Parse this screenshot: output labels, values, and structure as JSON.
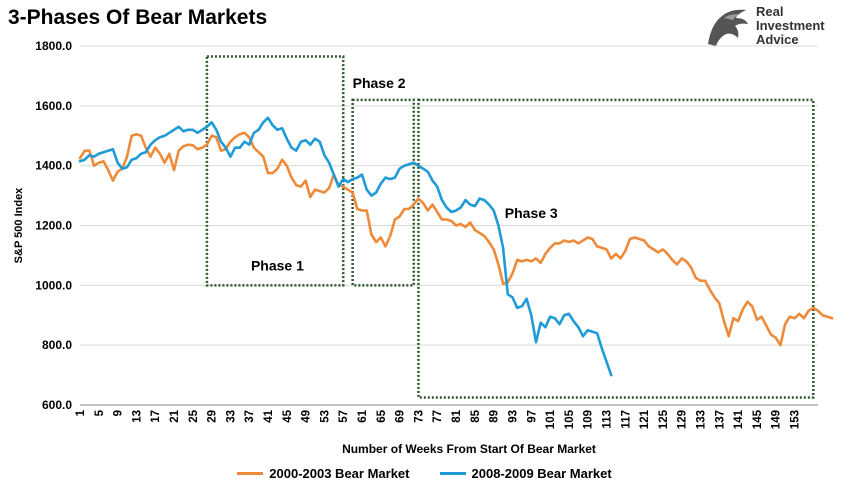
{
  "title": "3-Phases Of Bear Markets",
  "logo": {
    "line1": "Real",
    "line2": "Investment",
    "line3": "Advice",
    "icon": "eagle-head-icon"
  },
  "chart_data": {
    "type": "line",
    "xlabel": "Number of Weeks From Start Of Bear Market",
    "ylabel": "S&P 500 Index",
    "ylim": [
      600,
      1800
    ],
    "xlim": [
      1,
      158
    ],
    "yticks": [
      600,
      800,
      1000,
      1200,
      1400,
      1600,
      1800
    ],
    "ytick_labels": [
      "600.0",
      "800.0",
      "1000.0",
      "1200.0",
      "1400.0",
      "1600.0",
      "1800.0"
    ],
    "xtick_start": 1,
    "xtick_step": 4,
    "xtick_end": 153,
    "grid": "horizontal",
    "legend": "bottom",
    "series": [
      {
        "name": "2000-2003 Bear Market",
        "color": "#ED8B3A",
        "points": [
          [
            1,
            1425
          ],
          [
            2,
            1450
          ],
          [
            3,
            1450
          ],
          [
            4,
            1400
          ],
          [
            5,
            1410
          ],
          [
            6,
            1415
          ],
          [
            7,
            1385
          ],
          [
            8,
            1350
          ],
          [
            9,
            1380
          ],
          [
            10,
            1390
          ],
          [
            11,
            1430
          ],
          [
            12,
            1500
          ],
          [
            13,
            1505
          ],
          [
            14,
            1500
          ],
          [
            15,
            1460
          ],
          [
            16,
            1430
          ],
          [
            17,
            1460
          ],
          [
            18,
            1440
          ],
          [
            19,
            1410
          ],
          [
            20,
            1440
          ],
          [
            21,
            1385
          ],
          [
            22,
            1450
          ],
          [
            23,
            1465
          ],
          [
            24,
            1470
          ],
          [
            25,
            1468
          ],
          [
            26,
            1455
          ],
          [
            27,
            1460
          ],
          [
            28,
            1470
          ],
          [
            29,
            1500
          ],
          [
            30,
            1495
          ],
          [
            31,
            1450
          ],
          [
            32,
            1455
          ],
          [
            33,
            1480
          ],
          [
            34,
            1495
          ],
          [
            35,
            1505
          ],
          [
            36,
            1510
          ],
          [
            37,
            1495
          ],
          [
            38,
            1460
          ],
          [
            39,
            1445
          ],
          [
            40,
            1430
          ],
          [
            41,
            1375
          ],
          [
            42,
            1375
          ],
          [
            43,
            1390
          ],
          [
            44,
            1420
          ],
          [
            45,
            1400
          ],
          [
            46,
            1360
          ],
          [
            47,
            1335
          ],
          [
            48,
            1330
          ],
          [
            49,
            1350
          ],
          [
            50,
            1295
          ],
          [
            51,
            1320
          ],
          [
            52,
            1315
          ],
          [
            53,
            1310
          ],
          [
            54,
            1325
          ],
          [
            55,
            1370
          ],
          [
            56,
            1335
          ],
          [
            57,
            1330
          ],
          [
            58,
            1320
          ],
          [
            59,
            1310
          ],
          [
            60,
            1255
          ],
          [
            61,
            1250
          ],
          [
            62,
            1250
          ],
          [
            63,
            1170
          ],
          [
            64,
            1145
          ],
          [
            65,
            1160
          ],
          [
            66,
            1130
          ],
          [
            67,
            1165
          ],
          [
            68,
            1220
          ],
          [
            69,
            1230
          ],
          [
            70,
            1255
          ],
          [
            71,
            1255
          ],
          [
            72,
            1270
          ],
          [
            73,
            1290
          ],
          [
            74,
            1275
          ],
          [
            75,
            1250
          ],
          [
            76,
            1270
          ],
          [
            77,
            1245
          ],
          [
            78,
            1220
          ],
          [
            79,
            1220
          ],
          [
            80,
            1215
          ],
          [
            81,
            1200
          ],
          [
            82,
            1205
          ],
          [
            83,
            1195
          ],
          [
            84,
            1210
          ],
          [
            85,
            1185
          ],
          [
            86,
            1175
          ],
          [
            87,
            1165
          ],
          [
            88,
            1145
          ],
          [
            89,
            1120
          ],
          [
            90,
            1070
          ],
          [
            91,
            1005
          ],
          [
            92,
            1010
          ],
          [
            93,
            1040
          ],
          [
            94,
            1085
          ],
          [
            95,
            1080
          ],
          [
            96,
            1085
          ],
          [
            97,
            1080
          ],
          [
            98,
            1090
          ],
          [
            99,
            1075
          ],
          [
            100,
            1105
          ],
          [
            101,
            1125
          ],
          [
            102,
            1140
          ],
          [
            103,
            1140
          ],
          [
            104,
            1150
          ],
          [
            105,
            1145
          ],
          [
            106,
            1150
          ],
          [
            107,
            1140
          ],
          [
            108,
            1150
          ],
          [
            109,
            1160
          ],
          [
            110,
            1155
          ],
          [
            111,
            1130
          ],
          [
            112,
            1125
          ],
          [
            113,
            1120
          ],
          [
            114,
            1090
          ],
          [
            115,
            1105
          ],
          [
            116,
            1090
          ],
          [
            117,
            1115
          ],
          [
            118,
            1155
          ],
          [
            119,
            1160
          ],
          [
            120,
            1155
          ],
          [
            121,
            1150
          ],
          [
            122,
            1130
          ],
          [
            123,
            1120
          ],
          [
            124,
            1110
          ],
          [
            125,
            1120
          ],
          [
            126,
            1105
          ],
          [
            127,
            1085
          ],
          [
            128,
            1070
          ],
          [
            129,
            1090
          ],
          [
            130,
            1080
          ],
          [
            131,
            1060
          ],
          [
            132,
            1025
          ],
          [
            133,
            1015
          ],
          [
            134,
            1015
          ],
          [
            135,
            985
          ],
          [
            136,
            960
          ],
          [
            137,
            940
          ],
          [
            138,
            880
          ],
          [
            139,
            830
          ],
          [
            140,
            890
          ],
          [
            141,
            880
          ],
          [
            142,
            920
          ],
          [
            143,
            945
          ],
          [
            144,
            930
          ],
          [
            145,
            885
          ],
          [
            146,
            895
          ],
          [
            147,
            865
          ],
          [
            148,
            835
          ],
          [
            149,
            825
          ],
          [
            150,
            800
          ],
          [
            151,
            870
          ],
          [
            152,
            895
          ],
          [
            153,
            890
          ],
          [
            154,
            905
          ],
          [
            155,
            890
          ],
          [
            156,
            915
          ],
          [
            157,
            925
          ],
          [
            158,
            915
          ],
          [
            159,
            900
          ],
          [
            160,
            895
          ],
          [
            161,
            890
          ]
        ]
      },
      {
        "name": "2008-2009 Bear Market",
        "color": "#1E9BD7",
        "points": [
          [
            1,
            1415
          ],
          [
            2,
            1420
          ],
          [
            3,
            1435
          ],
          [
            4,
            1430
          ],
          [
            5,
            1440
          ],
          [
            6,
            1445
          ],
          [
            7,
            1450
          ],
          [
            8,
            1455
          ],
          [
            9,
            1410
          ],
          [
            10,
            1390
          ],
          [
            11,
            1395
          ],
          [
            12,
            1420
          ],
          [
            13,
            1425
          ],
          [
            14,
            1440
          ],
          [
            15,
            1445
          ],
          [
            16,
            1470
          ],
          [
            17,
            1485
          ],
          [
            18,
            1495
          ],
          [
            19,
            1500
          ],
          [
            20,
            1510
          ],
          [
            21,
            1520
          ],
          [
            22,
            1530
          ],
          [
            23,
            1515
          ],
          [
            24,
            1520
          ],
          [
            25,
            1520
          ],
          [
            26,
            1510
          ],
          [
            27,
            1520
          ],
          [
            28,
            1530
          ],
          [
            29,
            1545
          ],
          [
            30,
            1520
          ],
          [
            31,
            1480
          ],
          [
            32,
            1460
          ],
          [
            33,
            1430
          ],
          [
            34,
            1460
          ],
          [
            35,
            1460
          ],
          [
            36,
            1480
          ],
          [
            37,
            1470
          ],
          [
            38,
            1510
          ],
          [
            39,
            1520
          ],
          [
            40,
            1545
          ],
          [
            41,
            1560
          ],
          [
            42,
            1535
          ],
          [
            43,
            1520
          ],
          [
            44,
            1525
          ],
          [
            45,
            1490
          ],
          [
            46,
            1460
          ],
          [
            47,
            1450
          ],
          [
            48,
            1480
          ],
          [
            49,
            1485
          ],
          [
            50,
            1470
          ],
          [
            51,
            1490
          ],
          [
            52,
            1480
          ],
          [
            53,
            1435
          ],
          [
            54,
            1410
          ],
          [
            55,
            1370
          ],
          [
            56,
            1330
          ],
          [
            57,
            1355
          ],
          [
            58,
            1345
          ],
          [
            59,
            1355
          ],
          [
            60,
            1360
          ],
          [
            61,
            1370
          ],
          [
            62,
            1320
          ],
          [
            63,
            1300
          ],
          [
            64,
            1310
          ],
          [
            65,
            1340
          ],
          [
            66,
            1360
          ],
          [
            67,
            1355
          ],
          [
            68,
            1360
          ],
          [
            69,
            1390
          ],
          [
            70,
            1400
          ],
          [
            71,
            1405
          ],
          [
            72,
            1410
          ],
          [
            73,
            1400
          ],
          [
            74,
            1390
          ],
          [
            75,
            1380
          ],
          [
            76,
            1350
          ],
          [
            77,
            1330
          ],
          [
            78,
            1285
          ],
          [
            79,
            1260
          ],
          [
            80,
            1245
          ],
          [
            81,
            1250
          ],
          [
            82,
            1260
          ],
          [
            83,
            1285
          ],
          [
            84,
            1270
          ],
          [
            85,
            1265
          ],
          [
            86,
            1290
          ],
          [
            87,
            1285
          ],
          [
            88,
            1270
          ],
          [
            89,
            1250
          ],
          [
            90,
            1200
          ],
          [
            91,
            1125
          ],
          [
            92,
            970
          ],
          [
            93,
            960
          ],
          [
            94,
            925
          ],
          [
            95,
            930
          ],
          [
            96,
            955
          ],
          [
            97,
            900
          ],
          [
            98,
            810
          ],
          [
            99,
            875
          ],
          [
            100,
            860
          ],
          [
            101,
            895
          ],
          [
            102,
            890
          ],
          [
            103,
            870
          ],
          [
            104,
            900
          ],
          [
            105,
            905
          ],
          [
            106,
            880
          ],
          [
            107,
            860
          ],
          [
            108,
            830
          ],
          [
            109,
            850
          ],
          [
            110,
            845
          ],
          [
            111,
            840
          ],
          [
            112,
            790
          ],
          [
            113,
            745
          ],
          [
            114,
            700
          ]
        ]
      }
    ],
    "annotations": [
      {
        "label": "Phase 1",
        "x0": 28,
        "x1": 57,
        "y0": 1000,
        "y1": 1765,
        "label_x": 43,
        "label_y": 1050
      },
      {
        "label": "Phase 2",
        "x0": 59,
        "x1": 72,
        "y0": 1000,
        "y1": 1620,
        "label_x": 59,
        "label_y": 1660
      },
      {
        "label": "Phase 3",
        "x0": 73,
        "x1": 157,
        "y0": 625,
        "y1": 1620,
        "label_x": 97,
        "label_y": 1225
      }
    ]
  }
}
